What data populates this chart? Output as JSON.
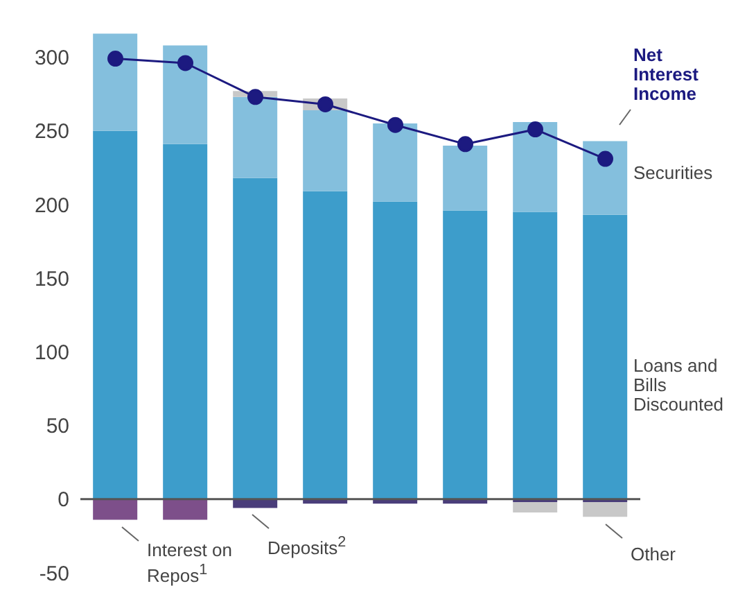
{
  "chart_data": {
    "type": "bar",
    "stacked": true,
    "categories": [
      null,
      null,
      null,
      null,
      null,
      null,
      null,
      null
    ],
    "series": [
      {
        "name": "Loans and Bills Discounted",
        "color": "#3d9dcb",
        "values": [
          250,
          241,
          218,
          209,
          202,
          196,
          195,
          193
        ]
      },
      {
        "name": "Securities",
        "color": "#84bfdd",
        "values": [
          66,
          67,
          55,
          55,
          53,
          44,
          61,
          50
        ]
      },
      {
        "name": "Interest on Repos$^{1}$",
        "color": "#7d4f8a",
        "values": [
          -14,
          -14,
          null,
          null,
          null,
          null,
          null,
          null
        ]
      },
      {
        "name": "Deposits$^{2}$",
        "color": "#4a3d7a",
        "values": [
          null,
          null,
          -6,
          -3,
          -3,
          -3,
          -2,
          -2
        ]
      },
      {
        "name": "Other",
        "color": "#c8c8c8",
        "values": [
          null,
          null,
          4,
          8,
          null,
          null,
          -7,
          -10
        ]
      },
      {
        "name": "Net Interest Income",
        "type": "line",
        "color": "#1c1a80",
        "values": [
          299,
          296,
          273,
          268,
          254,
          241,
          251,
          231
        ]
      }
    ],
    "ylim": [
      -50,
      320
    ],
    "yticks": [
      -50,
      0,
      50,
      100,
      150,
      200,
      250,
      300
    ],
    "ref_lines": [
      {
        "axis": "y",
        "value": 0,
        "color": "#555555"
      }
    ],
    "marker": "circle",
    "line_style": "solid",
    "grid": false,
    "legend": false
  }
}
